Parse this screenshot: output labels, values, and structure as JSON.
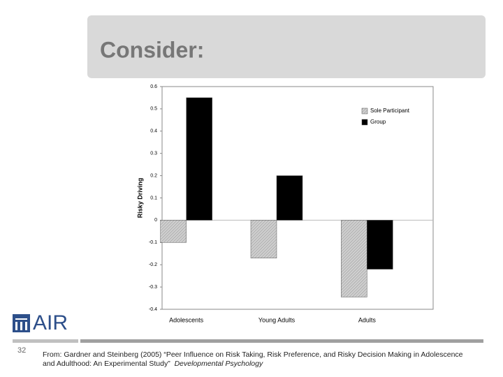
{
  "slide": {
    "title": "Consider:",
    "logo": "AIR",
    "page_number": "32",
    "citation": "From:  Gardner and Steinberg (2005) “Peer Influence on Risk Taking, Risk Preference, and Risky Decision Making in Adolescence and Adulthood: An Experimental Study”",
    "journal": "Developmental Psychology"
  },
  "chart_data": {
    "type": "bar",
    "y_label": "Risky Driving",
    "categories": [
      "Adolescents",
      "Young Adults",
      "Adults"
    ],
    "series": [
      {
        "name": "Sole Participant",
        "color": "#cfcfcf",
        "values": [
          -0.1,
          -0.17,
          -0.345
        ]
      },
      {
        "name": "Group",
        "color": "#000000",
        "values": [
          0.55,
          0.2,
          -0.22
        ]
      }
    ],
    "ylim": [
      -0.4,
      0.6
    ],
    "yticks": [
      -0.4,
      -0.3,
      -0.2,
      -0.1,
      0,
      0.1,
      0.2,
      0.3,
      0.4,
      0.5,
      0.6
    ],
    "legend": "top-right"
  }
}
